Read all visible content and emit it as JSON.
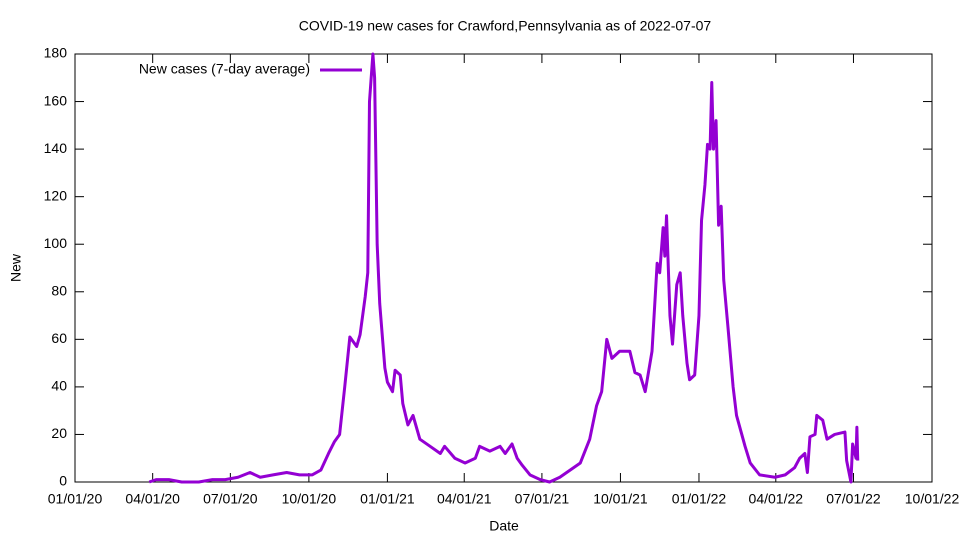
{
  "chart_data": {
    "type": "line",
    "title": "COVID-19 new cases for Crawford,Pennsylvania as of 2022-07-07",
    "x_label": "Date",
    "y_label": "New",
    "x": [
      "2020-03-28",
      "2020-04-05",
      "2020-04-20",
      "2020-05-05",
      "2020-05-25",
      "2020-06-10",
      "2020-06-25",
      "2020-07-10",
      "2020-07-24",
      "2020-08-05",
      "2020-08-20",
      "2020-09-05",
      "2020-09-20",
      "2020-10-05",
      "2020-10-15",
      "2020-10-24",
      "2020-10-31",
      "2020-11-06",
      "2020-11-12",
      "2020-11-18",
      "2020-11-26",
      "2020-11-30",
      "2020-12-06",
      "2020-12-09",
      "2020-12-11",
      "2020-12-15",
      "2020-12-17",
      "2020-12-20",
      "2020-12-23",
      "2020-12-29",
      "2021-01-01",
      "2021-01-07",
      "2021-01-10",
      "2021-01-16",
      "2021-01-19",
      "2021-01-25",
      "2021-01-31",
      "2021-02-08",
      "2021-02-20",
      "2021-03-04",
      "2021-03-09",
      "2021-03-21",
      "2021-04-02",
      "2021-04-14",
      "2021-04-19",
      "2021-05-01",
      "2021-05-13",
      "2021-05-19",
      "2021-05-27",
      "2021-06-02",
      "2021-06-08",
      "2021-06-17",
      "2021-06-29",
      "2021-07-10",
      "2021-07-22",
      "2021-08-03",
      "2021-08-15",
      "2021-08-26",
      "2021-09-03",
      "2021-09-09",
      "2021-09-15",
      "2021-09-21",
      "2021-09-30",
      "2021-10-12",
      "2021-10-18",
      "2021-10-24",
      "2021-10-30",
      "2021-11-07",
      "2021-11-13",
      "2021-11-16",
      "2021-11-20",
      "2021-11-22",
      "2021-11-24",
      "2021-11-28",
      "2021-12-01",
      "2021-12-06",
      "2021-12-10",
      "2021-12-13",
      "2021-12-18",
      "2021-12-21",
      "2021-12-27",
      "2022-01-01",
      "2022-01-04",
      "2022-01-08",
      "2022-01-11",
      "2022-01-14",
      "2022-01-16",
      "2022-01-18",
      "2022-01-21",
      "2022-01-24",
      "2022-01-27",
      "2022-01-30",
      "2022-02-04",
      "2022-02-10",
      "2022-02-14",
      "2022-02-24",
      "2022-03-02",
      "2022-03-13",
      "2022-03-31",
      "2022-04-12",
      "2022-04-23",
      "2022-04-29",
      "2022-05-05",
      "2022-05-08",
      "2022-05-11",
      "2022-05-17",
      "2022-05-19",
      "2022-05-26",
      "2022-05-31",
      "2022-06-09",
      "2022-06-21",
      "2022-06-23",
      "2022-06-28",
      "2022-06-30",
      "2022-07-04",
      "2022-07-05",
      "2022-07-06"
    ],
    "series": [
      {
        "name": "New cases (7-day average)",
        "color": "#9400d3",
        "values": [
          0,
          1,
          1,
          0,
          0,
          1,
          1,
          2,
          4,
          2,
          3,
          4,
          3,
          3,
          5,
          12,
          17,
          20,
          40,
          61,
          57,
          62,
          78,
          88,
          160,
          180,
          170,
          100,
          75,
          48,
          42,
          38,
          47,
          45,
          33,
          24,
          28,
          18,
          15,
          12,
          15,
          10,
          8,
          10,
          15,
          13,
          15,
          12,
          16,
          10,
          7,
          3,
          1,
          0,
          2,
          5,
          8,
          18,
          32,
          38,
          60,
          52,
          55,
          55,
          46,
          45,
          38,
          55,
          92,
          88,
          107,
          95,
          112,
          70,
          58,
          83,
          88,
          70,
          50,
          43,
          45,
          70,
          110,
          125,
          142,
          140,
          168,
          140,
          152,
          108,
          116,
          85,
          65,
          40,
          28,
          15,
          8,
          3,
          2,
          3,
          6,
          10,
          12,
          4,
          19,
          20,
          28,
          26,
          18,
          20,
          21,
          9,
          0,
          16,
          10,
          23,
          9
        ]
      }
    ],
    "xlim": [
      "2020-01-01",
      "2022-10-01"
    ],
    "xticks": [
      {
        "value": "2020-01-01",
        "label": "01/01/20"
      },
      {
        "value": "2020-04-01",
        "label": "04/01/20"
      },
      {
        "value": "2020-07-01",
        "label": "07/01/20"
      },
      {
        "value": "2020-10-01",
        "label": "10/01/20"
      },
      {
        "value": "2021-01-01",
        "label": "01/01/21"
      },
      {
        "value": "2021-04-01",
        "label": "04/01/21"
      },
      {
        "value": "2021-07-01",
        "label": "07/01/21"
      },
      {
        "value": "2021-10-01",
        "label": "10/01/21"
      },
      {
        "value": "2022-01-01",
        "label": "01/01/22"
      },
      {
        "value": "2022-04-01",
        "label": "04/01/22"
      },
      {
        "value": "2022-07-01",
        "label": "07/01/22"
      },
      {
        "value": "2022-10-01",
        "label": "10/01/22"
      }
    ],
    "ylim": [
      0,
      180
    ],
    "yticks": [
      0,
      20,
      40,
      60,
      80,
      100,
      120,
      140,
      160,
      180
    ],
    "grid": false,
    "legend": "top-left"
  }
}
